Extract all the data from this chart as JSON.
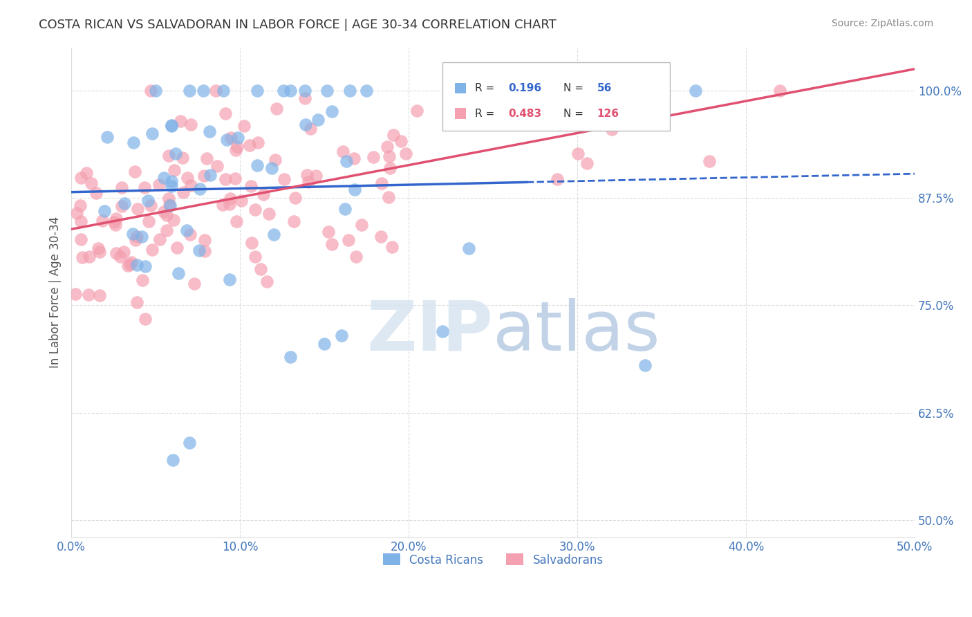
{
  "title": "COSTA RICAN VS SALVADORAN IN LABOR FORCE | AGE 30-34 CORRELATION CHART",
  "source": "Source: ZipAtlas.com",
  "xlabel": "",
  "ylabel": "In Labor Force | Age 30-34",
  "x_tick_labels": [
    "0.0%",
    "10.0%",
    "20.0%",
    "30.0%",
    "40.0%",
    "50.0%"
  ],
  "x_tick_values": [
    0.0,
    0.1,
    0.2,
    0.3,
    0.4,
    0.5
  ],
  "y_tick_labels": [
    "50.0%",
    "62.5%",
    "75.0%",
    "87.5%",
    "100.0%"
  ],
  "y_tick_values": [
    0.5,
    0.625,
    0.75,
    0.875,
    1.0
  ],
  "xlim": [
    0.0,
    0.5
  ],
  "ylim": [
    0.48,
    1.05
  ],
  "blue_R": 0.196,
  "blue_N": 56,
  "pink_R": 0.483,
  "pink_N": 126,
  "blue_color": "#7fb3e8",
  "pink_color": "#f4a0b0",
  "blue_line_color": "#3366cc",
  "pink_line_color": "#e05070",
  "legend_label_blue": "Costa Ricans",
  "legend_label_pink": "Salvadorans",
  "watermark": "ZIPatlas",
  "background_color": "#ffffff",
  "grid_color": "#dddddd",
  "title_color": "#333333",
  "axis_label_color": "#555555",
  "tick_color": "#4477bb",
  "source_color": "#888888"
}
